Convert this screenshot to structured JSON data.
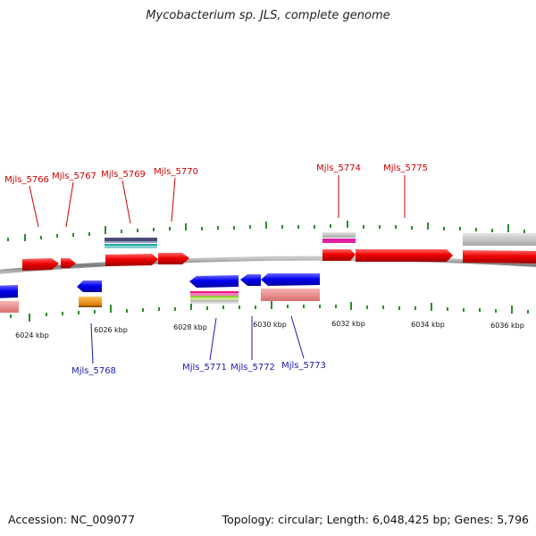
{
  "title": "Mycobacterium sp. JLS, complete genome",
  "footer": {
    "accession": "Accession: NC_009077",
    "info": "Topology: circular; Length: 6,048,425 bp; Genes: 5,796"
  },
  "colors": {
    "forward_label": "#cc0000",
    "reverse_label": "#1a1aaa",
    "backbone": "#8c8c8c",
    "tick": "#2e8b2e"
  },
  "axis_labels": [
    "6024 kbp",
    "6026 kbp",
    "6028 kbp",
    "6030 kbp",
    "6032 kbp",
    "6034 kbp",
    "6036 kbp"
  ],
  "forward_genes": [
    "Mjls_5766",
    "Mjls_5767",
    "Mjls_5769",
    "Mjls_5770",
    "Mjls_5774",
    "Mjls_5775"
  ],
  "reverse_genes": [
    "Mjls_5768",
    "Mjls_5771",
    "Mjls_5772",
    "Mjls_5773"
  ]
}
